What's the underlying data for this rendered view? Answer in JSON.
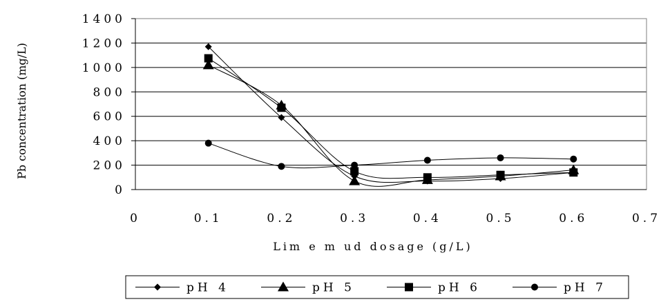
{
  "chart_data": {
    "type": "line",
    "title": "",
    "xlabel": "Lim e m ud  dosage  (g/L)",
    "ylabel": "Pb concentration (mg/L)",
    "xlim": [
      0,
      0.7
    ],
    "ylim": [
      0,
      1400
    ],
    "x_ticks": [
      "0",
      "0.1",
      "0.2",
      "0.3",
      "0.4",
      "0.5",
      "0.6",
      "0.7"
    ],
    "y_ticks": [
      "0",
      "200",
      "400",
      "600",
      "800",
      "1000",
      "1200",
      "1400"
    ],
    "grid": "horizontal",
    "legend_position": "bottom",
    "series": [
      {
        "name": "pH 4",
        "marker": "diamond",
        "x": [
          0.1,
          0.2,
          0.3,
          0.4,
          0.5,
          0.6
        ],
        "y": [
          1170,
          590,
          110,
          70,
          90,
          140
        ]
      },
      {
        "name": "pH 5",
        "marker": "triangle",
        "x": [
          0.1,
          0.2,
          0.3,
          0.4,
          0.5,
          0.6
        ],
        "y": [
          1020,
          690,
          70,
          80,
          110,
          160
        ]
      },
      {
        "name": "pH 6",
        "marker": "square",
        "x": [
          0.1,
          0.2,
          0.3,
          0.4,
          0.5,
          0.6
        ],
        "y": [
          1075,
          670,
          150,
          100,
          120,
          140
        ]
      },
      {
        "name": "pH 7",
        "marker": "circle",
        "x": [
          0.1,
          0.2,
          0.3,
          0.4,
          0.5,
          0.6
        ],
        "y": [
          380,
          190,
          200,
          240,
          260,
          250
        ]
      }
    ]
  }
}
